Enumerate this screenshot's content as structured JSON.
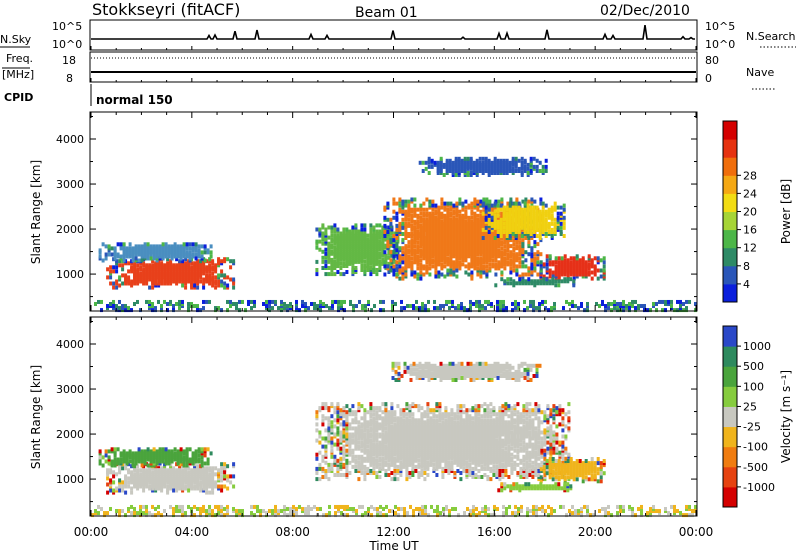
{
  "header": {
    "station": "Stokkseyri (fitACF)",
    "beam": "Beam 01",
    "date": "02/Dec/2010"
  },
  "params": {
    "nsky_label": "N.Sky",
    "nsky_ticks": [
      "10^5",
      "10^0"
    ],
    "nsearch_label": "N.Search",
    "nsearch_ticks": [
      "10^5",
      "10^0"
    ],
    "freq_label": "Freq.",
    "freq_unit": "[MHz]",
    "freq_ticks": [
      "18",
      "8"
    ],
    "nave_label": "Nave",
    "nave_ticks": [
      "80",
      "0"
    ],
    "cpid_label": "CPID",
    "cpid_value": "normal 150"
  },
  "chart_data": [
    {
      "type": "heatmap",
      "name": "power",
      "ylabel": "Slant Range [km]",
      "xlabel": "Time UT",
      "xticks": [
        "00:00",
        "04:00",
        "08:00",
        "12:00",
        "16:00",
        "20:00",
        "00:00"
      ],
      "xlim_hours": [
        0,
        24
      ],
      "yticks": [
        "1000",
        "2000",
        "3000",
        "4000"
      ],
      "ylim_km": [
        180,
        4600
      ],
      "colorbar": {
        "label": "Power [dB]",
        "ticks": [
          "4",
          "8",
          "12",
          "16",
          "20",
          "24",
          "28"
        ],
        "colors": [
          "#0a1fdc",
          "#2a56b8",
          "#2e8a66",
          "#4cb648",
          "#a6d436",
          "#f2dc14",
          "#f5a814",
          "#f06e0c",
          "#e63210",
          "#d40000"
        ]
      },
      "regions": [
        {
          "t0": 0.6,
          "t1": 5.6,
          "r0": 700,
          "r1": 1350,
          "core": "#e8401a"
        },
        {
          "t0": 0.3,
          "t1": 4.8,
          "r0": 1300,
          "r1": 1700,
          "core": "#4a8ec0"
        },
        {
          "t0": 8.9,
          "t1": 12.2,
          "r0": 1000,
          "r1": 2100,
          "core": "#63b844"
        },
        {
          "t0": 11.6,
          "t1": 17.8,
          "r0": 900,
          "r1": 2700,
          "core": "#f07818"
        },
        {
          "t0": 15.5,
          "t1": 18.8,
          "r0": 1800,
          "r1": 2600,
          "core": "#f0d010"
        },
        {
          "t0": 17.8,
          "t1": 20.3,
          "r0": 900,
          "r1": 1400,
          "core": "#e63018"
        },
        {
          "t0": 16.0,
          "t1": 19.2,
          "r0": 750,
          "r1": 900,
          "core": "#2e8a66"
        },
        {
          "t0": 13.0,
          "t1": 18.0,
          "r0": 3200,
          "r1": 3600,
          "core": "#2a56b8"
        }
      ]
    },
    {
      "type": "heatmap",
      "name": "velocity",
      "ylabel": "Slant Range [km]",
      "xlabel": "Time UT",
      "xticks": [
        "00:00",
        "04:00",
        "08:00",
        "12:00",
        "16:00",
        "20:00",
        "00:00"
      ],
      "xlim_hours": [
        0,
        24
      ],
      "yticks": [
        "1000",
        "2000",
        "3000",
        "4000"
      ],
      "ylim_km": [
        180,
        4600
      ],
      "colorbar": {
        "label": "Velocity [m s⁻¹]",
        "ticks": [
          "1000",
          "500",
          "100",
          "25",
          "-25",
          "-100",
          "-500",
          "-1000"
        ],
        "colors": [
          "#2a48c8",
          "#2e8a5e",
          "#4aa43c",
          "#86cc3e",
          "#c8c8c0",
          "#f0b41c",
          "#f07c10",
          "#e64210",
          "#d40000"
        ]
      },
      "regions": [
        {
          "t0": 0.6,
          "t1": 5.6,
          "r0": 700,
          "r1": 1350,
          "core": "#c8c8c0"
        },
        {
          "t0": 0.3,
          "t1": 4.8,
          "r0": 1300,
          "r1": 1700,
          "core": "#4aa43c"
        },
        {
          "t0": 8.9,
          "t1": 19.0,
          "r0": 1000,
          "r1": 2700,
          "core": "#c8c8c0"
        },
        {
          "t0": 11.8,
          "t1": 17.8,
          "r0": 3200,
          "r1": 3600,
          "core": "#c8c8c0"
        },
        {
          "t0": 17.8,
          "t1": 20.3,
          "r0": 950,
          "r1": 1450,
          "core": "#f0b41c"
        },
        {
          "t0": 16.0,
          "t1": 19.2,
          "r0": 750,
          "r1": 900,
          "core": "#86cc3e"
        }
      ]
    }
  ]
}
